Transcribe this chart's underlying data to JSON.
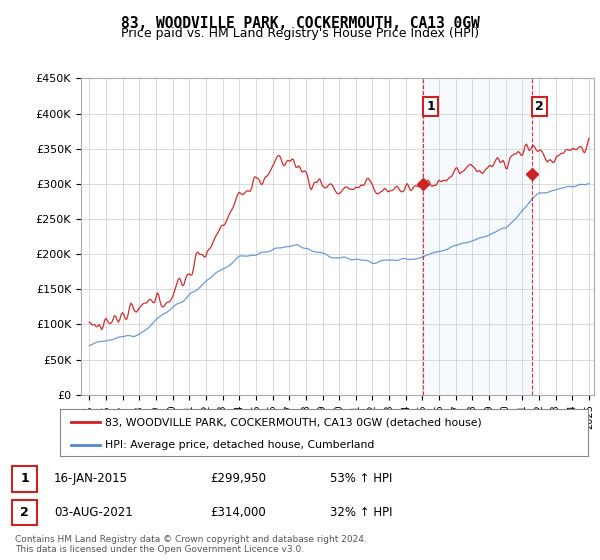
{
  "title": "83, WOODVILLE PARK, COCKERMOUTH, CA13 0GW",
  "subtitle": "Price paid vs. HM Land Registry's House Price Index (HPI)",
  "legend_line1": "83, WOODVILLE PARK, COCKERMOUTH, CA13 0GW (detached house)",
  "legend_line2": "HPI: Average price, detached house, Cumberland",
  "annotation1_label": "1",
  "annotation1_date": "16-JAN-2015",
  "annotation1_price": "£299,950",
  "annotation1_hpi": "53% ↑ HPI",
  "annotation2_label": "2",
  "annotation2_date": "03-AUG-2021",
  "annotation2_price": "£314,000",
  "annotation2_hpi": "32% ↑ HPI",
  "footer1": "Contains HM Land Registry data © Crown copyright and database right 2024.",
  "footer2": "This data is licensed under the Open Government Licence v3.0.",
  "hpi_color": "#5588cc",
  "price_color": "#cc2222",
  "annotation_color": "#cc2222",
  "shade_color": "#ddeeff",
  "ylim": [
    0,
    450000
  ],
  "yticks": [
    0,
    50000,
    100000,
    150000,
    200000,
    250000,
    300000,
    350000,
    400000,
    450000
  ],
  "ytick_labels": [
    "£0",
    "£50K",
    "£100K",
    "£150K",
    "£200K",
    "£250K",
    "£300K",
    "£350K",
    "£400K",
    "£450K"
  ],
  "background_color": "#ffffff",
  "grid_color": "#cccccc",
  "sale1_x": 2015.04,
  "sale1_y": 299950,
  "sale2_x": 2021.58,
  "sale2_y": 314000,
  "xmin": 1995,
  "xmax": 2025
}
